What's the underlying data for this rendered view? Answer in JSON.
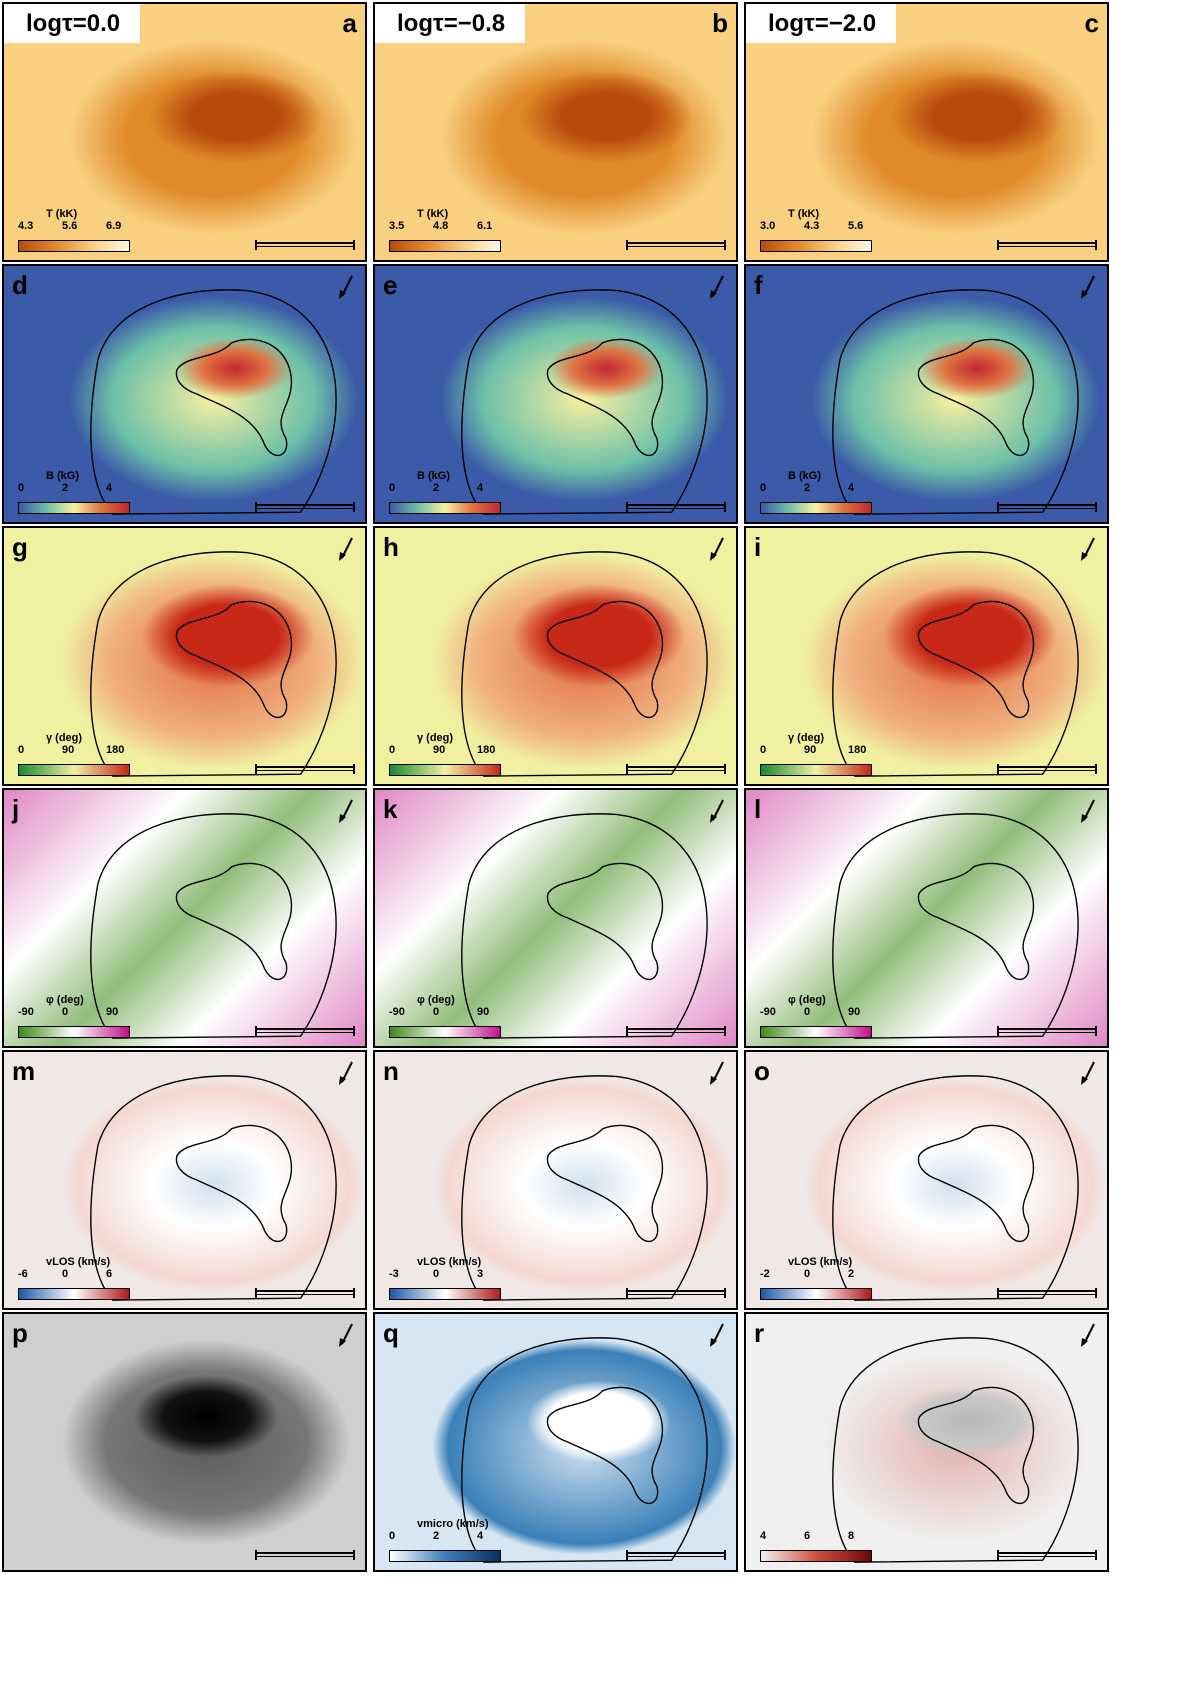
{
  "headings": [
    "logτ=0.0",
    "logτ=−0.8",
    "logτ=−2.0"
  ],
  "panels": [
    {
      "letter": "a",
      "cbar_title": "T (kK)",
      "ticks": [
        "4.3",
        "5.6",
        "6.9"
      ],
      "cmap": "heat",
      "bg": "heat"
    },
    {
      "letter": "b",
      "cbar_title": "T (kK)",
      "ticks": [
        "3.5",
        "4.8",
        "6.1"
      ],
      "cmap": "heat",
      "bg": "heat"
    },
    {
      "letter": "c",
      "cbar_title": "T (kK)",
      "ticks": [
        "3.0",
        "4.3",
        "5.6"
      ],
      "cmap": "heat",
      "bg": "heat"
    },
    {
      "letter": "d",
      "cbar_title": "B (kG)",
      "ticks": [
        "0",
        "2",
        "4"
      ],
      "cmap": "spectral",
      "bg": "spectral"
    },
    {
      "letter": "e",
      "cbar_title": "B (kG)",
      "ticks": [
        "0",
        "2",
        "4"
      ],
      "cmap": "spectral",
      "bg": "spectral"
    },
    {
      "letter": "f",
      "cbar_title": "B (kG)",
      "ticks": [
        "0",
        "2",
        "4"
      ],
      "cmap": "spectral",
      "bg": "spectral"
    },
    {
      "letter": "g",
      "cbar_title": "γ (deg)",
      "ticks": [
        "0",
        "90",
        "180"
      ],
      "cmap": "gyr",
      "bg": "gyr"
    },
    {
      "letter": "h",
      "cbar_title": "γ (deg)",
      "ticks": [
        "0",
        "90",
        "180"
      ],
      "cmap": "gyr",
      "bg": "gyr"
    },
    {
      "letter": "i",
      "cbar_title": "γ (deg)",
      "ticks": [
        "0",
        "90",
        "180"
      ],
      "cmap": "gyr",
      "bg": "gyr"
    },
    {
      "letter": "j",
      "cbar_title": "φ (deg)",
      "ticks": [
        "-90",
        "0",
        "90"
      ],
      "cmap": "piyg",
      "bg": "piyg"
    },
    {
      "letter": "k",
      "cbar_title": "φ (deg)",
      "ticks": [
        "-90",
        "0",
        "90"
      ],
      "cmap": "piyg",
      "bg": "piyg"
    },
    {
      "letter": "l",
      "cbar_title": "φ (deg)",
      "ticks": [
        "-90",
        "0",
        "90"
      ],
      "cmap": "piyg",
      "bg": "piyg"
    },
    {
      "letter": "m",
      "cbar_title": "vLOS (km/s)",
      "ticks": [
        "-6",
        "0",
        "6"
      ],
      "cmap": "rdbu",
      "bg": "rdbu"
    },
    {
      "letter": "n",
      "cbar_title": "vLOS (km/s)",
      "ticks": [
        "-3",
        "0",
        "3"
      ],
      "cmap": "rdbu",
      "bg": "rdbu"
    },
    {
      "letter": "o",
      "cbar_title": "vLOS (km/s)",
      "ticks": [
        "-2",
        "0",
        "2"
      ],
      "cmap": "rdbu",
      "bg": "rdbu"
    },
    {
      "letter": "p",
      "cbar_title": "",
      "ticks": [],
      "cmap": "none",
      "bg": "gray"
    },
    {
      "letter": "q",
      "cbar_title": "vmicro (km/s)",
      "ticks": [
        "0",
        "2",
        "4"
      ],
      "cmap": "blues",
      "bg": "blues"
    },
    {
      "letter": "r",
      "cbar_title": "",
      "ticks": [
        "4",
        "6",
        "8"
      ],
      "cmap": "reds",
      "bg": "reds"
    }
  ],
  "colors": {
    "heat": [
      "#b84a0c",
      "#e08a2a",
      "#f8d080",
      "#fff8e8"
    ],
    "spectral": [
      "#3b5aa8",
      "#6cc0a8",
      "#f8f0a0",
      "#e07040",
      "#c02830"
    ],
    "gyr": [
      "#1a8a30",
      "#f0f0a0",
      "#c82818"
    ],
    "piyg": [
      "#3e8a14",
      "#ffffff",
      "#c0108a"
    ],
    "rdbu": [
      "#1a5aa8",
      "#ffffff",
      "#b01a18"
    ],
    "blues": [
      "#ffffff",
      "#3a80b8",
      "#0a3060"
    ],
    "reds": [
      "#f0f0f0",
      "#d05040",
      "#700808"
    ],
    "gray": [
      "#000000",
      "#ffffff"
    ]
  }
}
